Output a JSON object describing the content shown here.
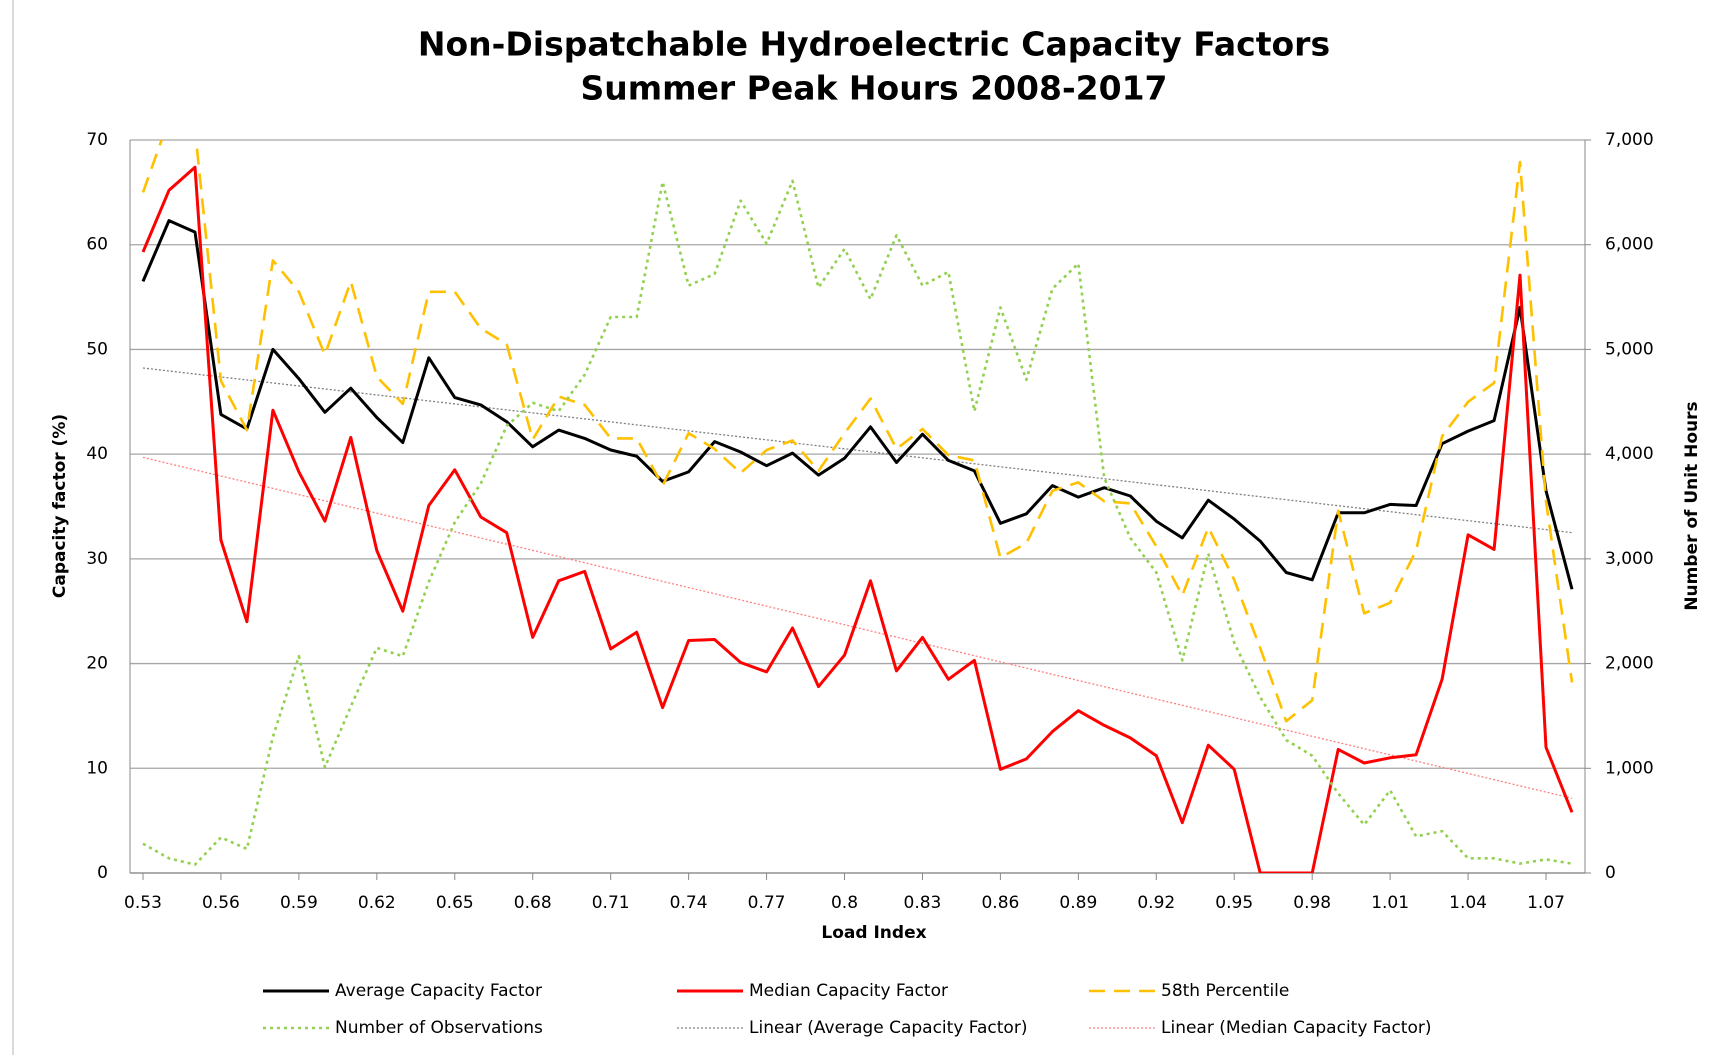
{
  "chart_data": {
    "type": "line",
    "title": [
      "Non-Dispatchable Hydroelectric Capacity Factors",
      "Summer Peak Hours 2008-2017"
    ],
    "x_label": "Load Index",
    "y_label": "Capacity factor (%)",
    "y2_label": "Number of Unit Hours",
    "x": [
      0.53,
      0.54,
      0.55,
      0.56,
      0.57,
      0.58,
      0.59,
      0.6,
      0.61,
      0.62,
      0.63,
      0.64,
      0.65,
      0.66,
      0.67,
      0.68,
      0.69,
      0.7,
      0.71,
      0.72,
      0.73,
      0.74,
      0.75,
      0.76,
      0.77,
      0.78,
      0.79,
      0.8,
      0.81,
      0.82,
      0.83,
      0.84,
      0.85,
      0.86,
      0.87,
      0.88,
      0.89,
      0.9,
      0.91,
      0.92,
      0.93,
      0.94,
      0.95,
      0.96,
      0.97,
      0.98,
      0.99,
      1.0,
      1.01,
      1.02,
      1.03,
      1.04,
      1.05,
      1.06,
      1.07,
      1.08
    ],
    "xlim": [
      0.525,
      1.085
    ],
    "xticks": [
      0.53,
      0.56,
      0.59,
      0.62,
      0.65,
      0.68,
      0.71,
      0.74,
      0.77,
      0.8,
      0.83,
      0.86,
      0.89,
      0.92,
      0.95,
      0.98,
      1.01,
      1.04,
      1.07
    ],
    "ylim": [
      0,
      70
    ],
    "yticks": [
      0,
      10,
      20,
      30,
      40,
      50,
      60,
      70
    ],
    "y2lim": [
      0,
      7000
    ],
    "y2ticks": [
      0,
      {
        "value": 1000,
        "label": "1,000"
      },
      {
        "value": 2000,
        "label": "2,000"
      },
      {
        "value": 3000,
        "label": "3,000"
      },
      {
        "value": 4000,
        "label": "4,000"
      },
      {
        "value": 5000,
        "label": "5,000"
      },
      {
        "value": 6000,
        "label": "6,000"
      },
      {
        "value": 7000,
        "label": "7,000"
      }
    ],
    "grid": true,
    "legend": "bottom",
    "series": [
      {
        "name": "Average Capacity Factor",
        "color": "#000000",
        "style": "solid",
        "values": [
          56.5,
          62.3,
          61.2,
          43.8,
          42.4,
          50,
          47.2,
          44,
          46.3,
          43.5,
          41.1,
          49.2,
          45.4,
          44.7,
          43.1,
          40.7,
          42.3,
          41.5,
          40.4,
          39.8,
          37.4,
          38.3,
          41.2,
          40.2,
          38.9,
          40.1,
          38,
          39.6,
          42.6,
          39.2,
          41.9,
          39.4,
          38.4,
          33.4,
          34.3,
          37,
          35.9,
          36.8,
          36,
          33.6,
          32,
          35.6,
          33.8,
          31.7,
          28.7,
          28,
          34.4,
          34.4,
          35.2,
          35.1,
          41,
          42.2,
          43.2,
          54,
          36.5,
          27.1
        ]
      },
      {
        "name": "Median Capacity Factor",
        "color": "#ff0000",
        "style": "solid",
        "values": [
          59.3,
          65.2,
          67.4,
          31.8,
          24,
          44.2,
          38.3,
          33.6,
          41.6,
          30.8,
          25,
          35.1,
          38.5,
          34,
          32.5,
          22.5,
          27.9,
          28.8,
          21.4,
          23,
          15.8,
          22.2,
          22.3,
          20.1,
          19.2,
          23.4,
          17.8,
          20.8,
          27.9,
          19.3,
          22.5,
          18.5,
          20.3,
          9.9,
          10.9,
          13.5,
          15.5,
          14.1,
          12.9,
          11.2,
          4.8,
          12.2,
          9.9,
          0,
          0,
          0,
          11.8,
          10.5,
          11,
          11.3,
          18.5,
          32.3,
          30.9,
          57.1,
          12,
          5.8
        ]
      },
      {
        "name": "58th Percentile",
        "color": "#ffc000",
        "style": "dashed",
        "values": [
          65,
          72,
          71,
          47,
          42.3,
          58.5,
          55.5,
          49.5,
          56.5,
          47.4,
          44.8,
          55.5,
          55.5,
          52,
          50.5,
          41.4,
          45.5,
          44.7,
          41.5,
          41.5,
          37,
          42,
          40.5,
          38.2,
          40.4,
          41.3,
          38.4,
          42,
          45.3,
          40.5,
          42.4,
          39.9,
          39.4,
          30.1,
          31.5,
          36.5,
          37.3,
          35.5,
          35.3,
          31.2,
          26.5,
          33,
          28,
          21.5,
          14.5,
          16.5,
          34.6,
          24.8,
          25.8,
          30.8,
          41.7,
          45,
          46.8,
          67.9,
          35.5,
          18.2
        ]
      },
      {
        "name": "Number of Observations",
        "color": "#92d050",
        "style": "dotted",
        "axis": "y2",
        "values": [
          280,
          140,
          80,
          340,
          230,
          1300,
          2070,
          1010,
          1590,
          2150,
          2070,
          2780,
          3350,
          3720,
          4270,
          4490,
          4410,
          4760,
          5310,
          5310,
          6600,
          5610,
          5720,
          6420,
          6010,
          6610,
          5590,
          5960,
          5480,
          6090,
          5610,
          5740,
          4410,
          5400,
          4710,
          5580,
          5820,
          3770,
          3200,
          2870,
          2030,
          3050,
          2200,
          1680,
          1270,
          1120,
          760,
          460,
          790,
          350,
          400,
          140,
          140,
          90,
          130,
          90
        ]
      }
    ],
    "trendlines": [
      {
        "name": "Linear (Average Capacity Factor)",
        "color": "#808080",
        "of": 0
      },
      {
        "name": "Linear (Median Capacity Factor)",
        "color": "#ff8080",
        "of": 1
      }
    ]
  }
}
